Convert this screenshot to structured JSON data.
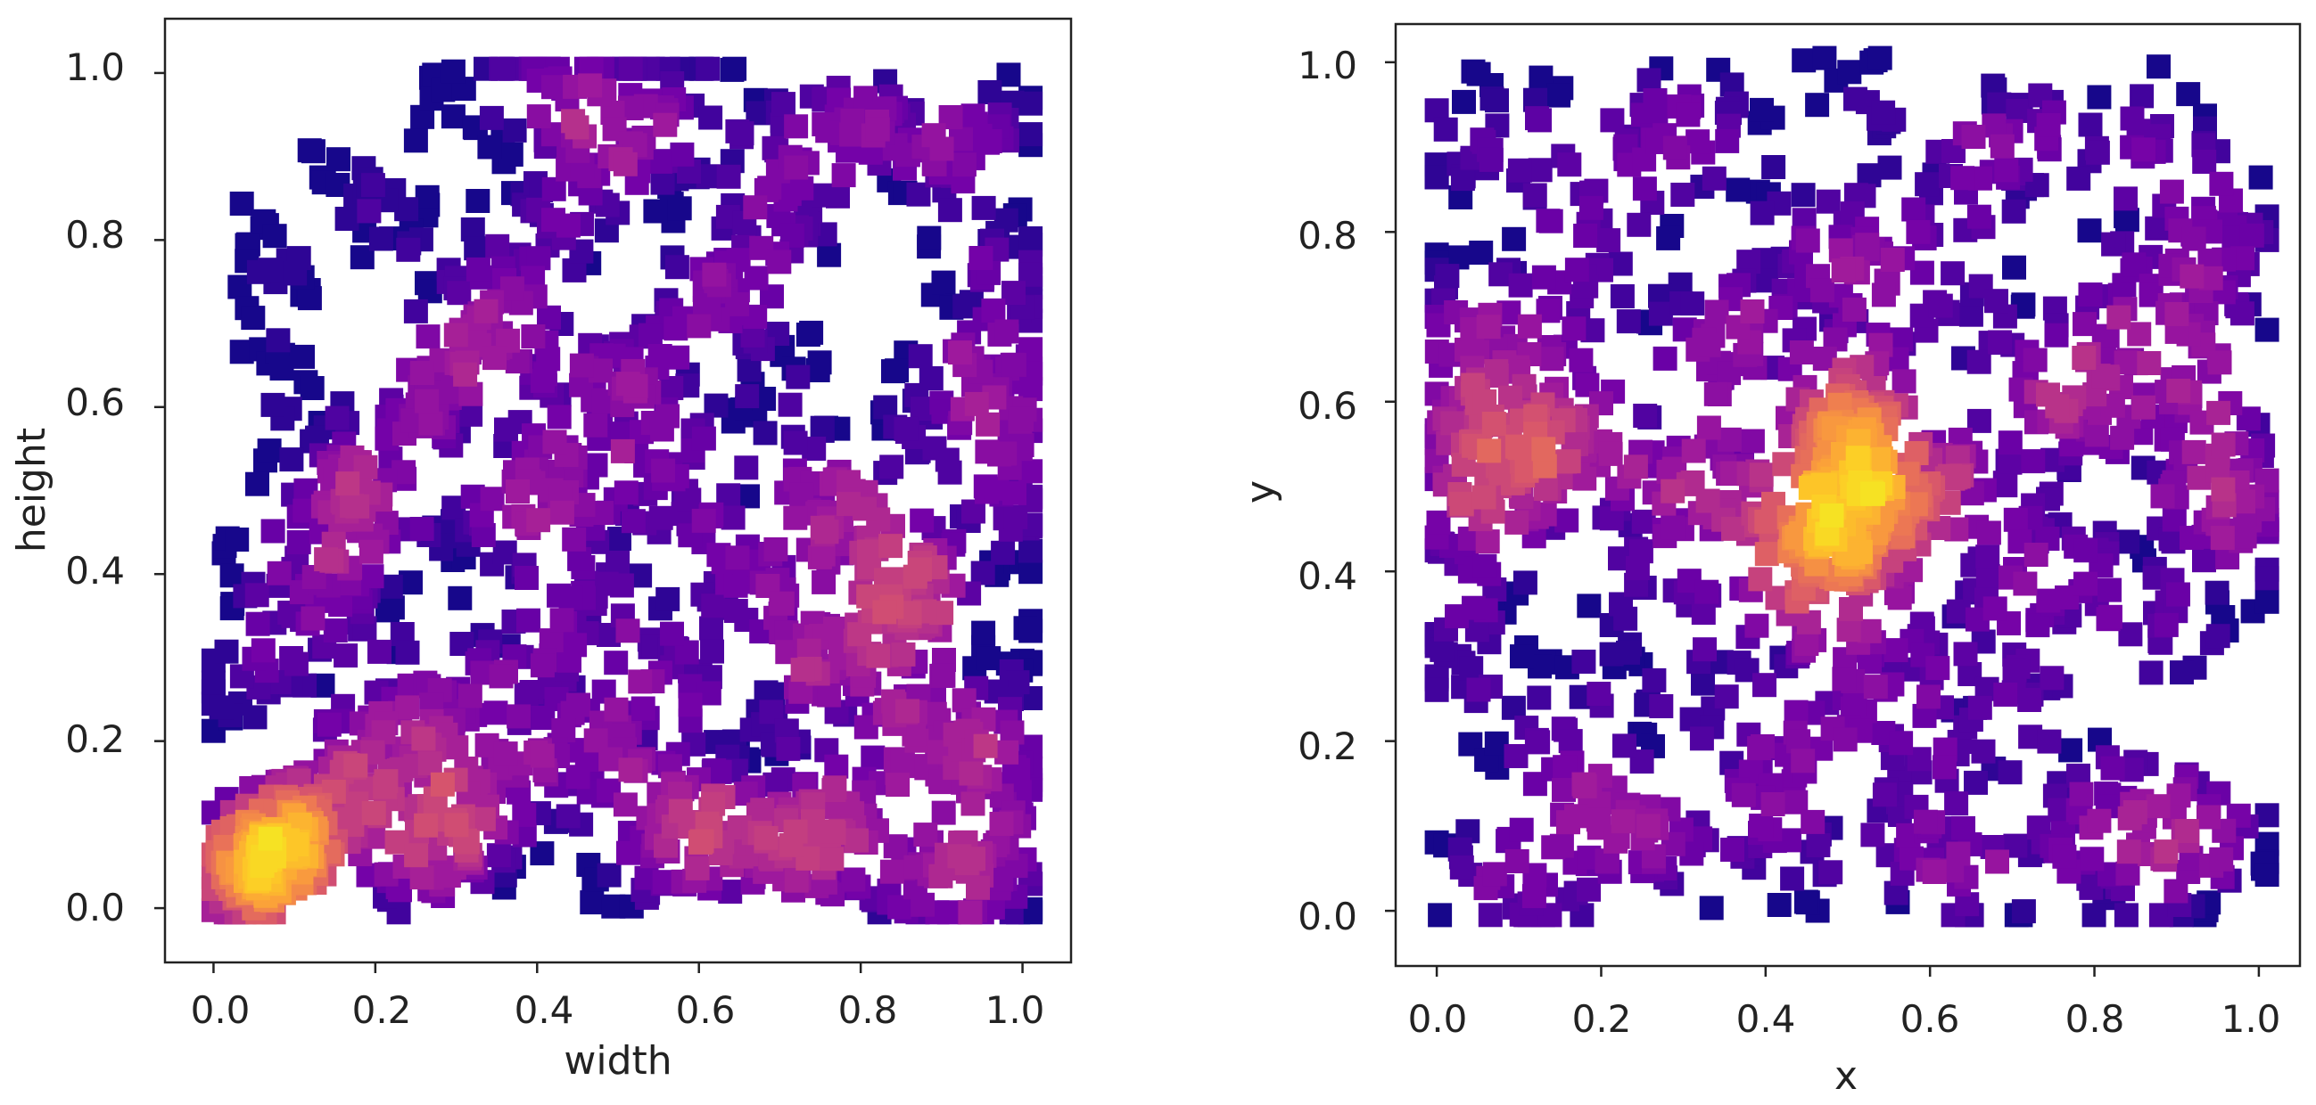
{
  "figure": {
    "colormap_name": "plasma",
    "marker": "square",
    "colormap_stops": [
      "#0d0887",
      "#46039f",
      "#7201a8",
      "#9c179e",
      "#bd3786",
      "#d8576b",
      "#ed7953",
      "#fb9f3a",
      "#fdca26",
      "#f0f921"
    ]
  },
  "chart_data": [
    {
      "type": "scatter",
      "title": "",
      "xlabel": "width",
      "ylabel": "height",
      "xlim": [
        -0.06,
        1.06
      ],
      "ylim": [
        -0.065,
        1.065
      ],
      "xticks": [
        0.0,
        0.2,
        0.4,
        0.6,
        0.8,
        1.0
      ],
      "xtick_labels": [
        "0.0",
        "0.2",
        "0.4",
        "0.6",
        "0.8",
        "1.0"
      ],
      "yticks": [
        0.0,
        0.2,
        0.4,
        0.6,
        0.8,
        1.0
      ],
      "ytick_labels": [
        "0.0",
        "0.2",
        "0.4",
        "0.6",
        "0.8",
        "1.0"
      ],
      "grid": false,
      "color_encoding": "local point density (plasma colormap, dark blue = low, yellow = high)",
      "density_peak": {
        "x": 0.06,
        "y": 0.04
      },
      "series": [
        {
          "name": "points",
          "x": [
            0.02,
            0.04,
            0.06,
            0.08,
            0.1,
            0.05,
            0.12,
            0.15,
            0.18,
            0.2,
            0.03,
            0.07,
            0.09,
            0.14,
            0.25,
            0.3,
            0.35,
            0.4,
            0.45,
            0.5,
            0.28,
            0.22,
            0.33,
            0.38,
            0.55,
            0.6,
            0.65,
            0.7,
            0.75,
            0.8,
            0.85,
            0.9,
            0.95,
            1.0,
            1.0,
            1.0,
            1.0,
            1.0,
            1.0,
            0.99,
            0.98,
            0.97,
            0.1,
            0.15,
            0.2,
            0.25,
            0.3,
            0.35,
            0.4,
            0.45,
            0.5,
            0.55,
            0.6,
            0.65,
            0.7,
            0.75,
            0.8,
            0.85,
            0.9,
            0.95,
            0.2,
            0.3,
            0.4,
            0.5,
            0.6,
            0.7,
            0.8,
            0.9,
            0.25,
            0.35,
            0.45,
            0.55,
            0.65,
            0.75,
            0.85,
            0.95,
            0.18,
            0.28,
            0.48,
            0.58,
            0.68,
            0.78,
            0.88,
            0.22,
            0.32,
            0.42,
            0.52,
            0.62,
            0.72,
            0.82,
            0.92,
            0.16,
            0.08,
            0.12,
            0.06,
            0.1,
            0.05,
            0.02,
            0.14,
            0.18,
            0.42,
            0.52,
            0.62,
            0.72,
            0.82,
            0.92,
            0.56,
            0.66,
            0.76,
            0.86,
            0.96,
            0.5,
            0.6,
            0.7,
            0.8,
            0.9,
            0.3,
            0.4,
            0.5,
            0.6,
            0.7,
            0.8,
            0.9,
            0.47,
            0.57,
            0.67,
            0.77,
            0.87,
            0.97,
            0.32,
            0.36,
            0.44,
            0.24,
            0.26,
            0.34,
            0.46,
            0.54,
            0.64,
            0.74,
            0.84,
            0.94
          ],
          "y": [
            0.02,
            0.03,
            0.05,
            0.06,
            0.08,
            0.1,
            0.12,
            0.15,
            0.18,
            0.2,
            0.07,
            0.04,
            0.11,
            0.09,
            0.22,
            0.25,
            0.28,
            0.3,
            0.24,
            0.2,
            0.16,
            0.12,
            0.14,
            0.18,
            0.16,
            0.12,
            0.1,
            0.08,
            0.06,
            0.05,
            0.04,
            0.03,
            0.03,
            0.02,
            0.15,
            0.3,
            0.45,
            0.6,
            0.8,
            0.95,
            0.5,
            0.7,
            0.3,
            0.4,
            0.5,
            0.6,
            0.7,
            0.8,
            0.9,
            0.95,
            1.0,
            0.92,
            0.85,
            0.75,
            0.65,
            0.55,
            0.45,
            0.35,
            0.25,
            0.15,
            0.35,
            0.45,
            0.55,
            0.65,
            0.75,
            0.85,
            0.95,
            0.9,
            0.6,
            0.7,
            0.8,
            0.5,
            0.4,
            0.3,
            0.2,
            0.1,
            0.5,
            0.6,
            0.42,
            0.32,
            0.22,
            0.12,
            0.62,
            0.82,
            0.72,
            0.66,
            0.56,
            0.46,
            0.36,
            0.26,
            0.76,
            0.86,
            0.7,
            0.6,
            0.8,
            0.5,
            0.4,
            0.26,
            0.38,
            0.48,
            0.5,
            0.62,
            0.72,
            0.82,
            0.92,
            0.42,
            0.08,
            0.18,
            0.28,
            0.38,
            0.58,
            0.04,
            0.06,
            0.1,
            0.14,
            0.2,
            0.96,
            1.0,
            0.88,
            0.98,
            0.94,
            0.9,
            0.88,
            0.33,
            0.27,
            0.37,
            0.47,
            0.57,
            0.67,
            0.06,
            0.09,
            0.14,
            0.03,
            0.06,
            0.42,
            0.52,
            0.67,
            0.57,
            0.47,
            0.37,
            0.23
          ]
        }
      ]
    },
    {
      "type": "scatter",
      "title": "",
      "xlabel": "x",
      "ylabel": "y",
      "xlim": [
        -0.05,
        1.05
      ],
      "ylim": [
        -0.065,
        1.045
      ],
      "xticks": [
        0.0,
        0.2,
        0.4,
        0.6,
        0.8,
        1.0
      ],
      "xtick_labels": [
        "0.0",
        "0.2",
        "0.4",
        "0.6",
        "0.8",
        "1.0"
      ],
      "yticks": [
        0.0,
        0.2,
        0.4,
        0.6,
        0.8,
        1.0
      ],
      "ytick_labels": [
        "0.0",
        "0.2",
        "0.4",
        "0.6",
        "0.8",
        "1.0"
      ],
      "grid": false,
      "color_encoding": "local point density (plasma colormap, dark blue = low, yellow = high)",
      "density_peak": {
        "x": 0.49,
        "y": 0.47
      },
      "series": [
        {
          "name": "points",
          "x": [
            0.48,
            0.5,
            0.52,
            0.49,
            0.51,
            0.47,
            0.53,
            0.5,
            0.46,
            0.54,
            0.5,
            0.48,
            0.52,
            0.02,
            0.05,
            0.08,
            0.1,
            0.03,
            0.06,
            0.12,
            0.15,
            0.2,
            0.25,
            0.3,
            0.35,
            0.4,
            0.45,
            0.55,
            0.6,
            0.65,
            0.7,
            0.75,
            0.8,
            0.85,
            0.9,
            0.95,
            0.98,
            0.1,
            0.2,
            0.3,
            0.4,
            0.6,
            0.7,
            0.8,
            0.9,
            0.15,
            0.25,
            0.35,
            0.45,
            0.55,
            0.65,
            0.75,
            0.85,
            0.95,
            0.05,
            0.12,
            0.22,
            0.32,
            0.42,
            0.58,
            0.68,
            0.78,
            0.88,
            0.97,
            0.08,
            0.18,
            0.28,
            0.38,
            0.62,
            0.72,
            0.82,
            0.92,
            0.03,
            0.13,
            0.23,
            0.33,
            0.43,
            0.57,
            0.67,
            0.77,
            0.87,
            0.96,
            0.1,
            0.3,
            0.5,
            0.7,
            0.9,
            0.2,
            0.4,
            0.6,
            0.8,
            0.99,
            0.01,
            0.16,
            0.36,
            0.56,
            0.76,
            0.93,
            0.02,
            0.97,
            0.5,
            0.5
          ],
          "y": [
            0.45,
            0.5,
            0.47,
            0.55,
            0.42,
            0.38,
            0.52,
            0.6,
            0.48,
            0.44,
            0.35,
            0.58,
            0.62,
            0.55,
            0.6,
            0.5,
            0.58,
            0.45,
            0.65,
            0.52,
            0.5,
            0.55,
            0.48,
            0.52,
            0.5,
            0.47,
            0.45,
            0.48,
            0.52,
            0.5,
            0.45,
            0.55,
            0.58,
            0.6,
            0.62,
            0.55,
            0.5,
            0.2,
            0.15,
            0.25,
            0.2,
            0.18,
            0.22,
            0.15,
            0.12,
            0.85,
            0.88,
            0.9,
            0.8,
            0.82,
            0.86,
            0.9,
            0.78,
            0.8,
            0.05,
            0.03,
            0.08,
            0.06,
            0.04,
            0.07,
            0.02,
            0.05,
            0.04,
            0.06,
            0.35,
            0.3,
            0.4,
            0.32,
            0.36,
            0.3,
            0.38,
            0.34,
            0.72,
            0.7,
            0.75,
            0.68,
            0.72,
            0.74,
            0.7,
            0.66,
            0.72,
            0.68,
            0.93,
            0.95,
            0.97,
            0.92,
            0.94,
            0.1,
            0.12,
            0.1,
            0.08,
            0.4,
            0.3,
            0.6,
            0.65,
            0.28,
            0.42,
            0.46,
            0.9,
            0.85,
            0.22,
            0.7
          ]
        }
      ]
    }
  ]
}
